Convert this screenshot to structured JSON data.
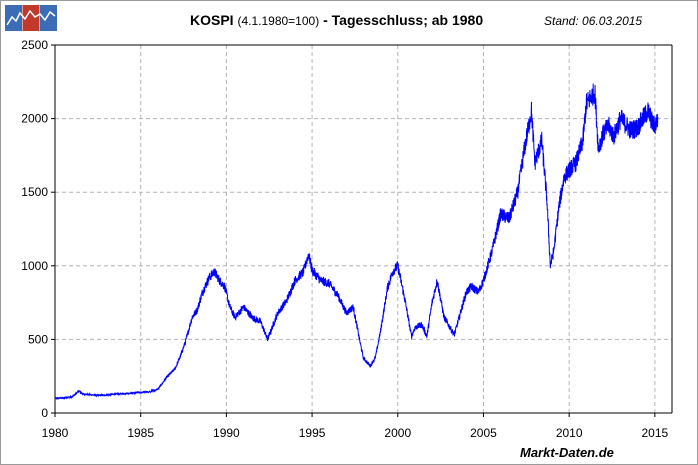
{
  "header": {
    "title_main": "KOSPI",
    "title_paren": "(4.1.1980=100)",
    "title_rest": "- Tagesschluss; ab 1980",
    "stand": "Stand: 06.03.2015"
  },
  "footer": {
    "source": "Markt-Daten.de"
  },
  "logo": {
    "icon": "chart-logo-icon",
    "colors": [
      "#3a6db5",
      "#c0392b",
      "#3a6db5"
    ]
  },
  "colors": {
    "line": "#0000ff",
    "grid": "#b4b4b4",
    "axis": "#000000"
  },
  "chart_data": {
    "type": "line",
    "title": "KOSPI (4.1.1980=100) - Tagesschluss; ab 1980",
    "xlabel": "",
    "ylabel": "",
    "xlim": [
      1980,
      2016
    ],
    "ylim": [
      0,
      2500
    ],
    "x_ticks": [
      1980,
      1985,
      1990,
      1995,
      2000,
      2005,
      2010,
      2015
    ],
    "y_ticks": [
      0,
      500,
      1000,
      1500,
      2000,
      2500
    ],
    "grid": true,
    "legend": "none",
    "series": [
      {
        "x": [
          1980.0,
          1980.5,
          1981.0,
          1981.4,
          1981.6,
          1982.0,
          1982.5,
          1983.0,
          1983.5,
          1984.0,
          1984.5,
          1985.0,
          1985.5,
          1986.0,
          1986.5,
          1987.0,
          1987.3,
          1987.6,
          1988.0,
          1988.3,
          1988.6,
          1989.0,
          1989.3,
          1989.6,
          1989.9,
          1990.2,
          1990.5,
          1990.8,
          1991.0,
          1991.5,
          1992.0,
          1992.4,
          1992.6,
          1993.0,
          1993.5,
          1994.0,
          1994.5,
          1994.8,
          1995.0,
          1995.5,
          1996.0,
          1996.5,
          1997.0,
          1997.4,
          1997.8,
          1998.0,
          1998.4,
          1998.7,
          1999.0,
          1999.4,
          1999.7,
          2000.0,
          2000.4,
          2000.8,
          2001.0,
          2001.4,
          2001.7,
          2002.0,
          2002.3,
          2002.7,
          2003.0,
          2003.3,
          2003.7,
          2004.0,
          2004.3,
          2004.7,
          2005.0,
          2005.5,
          2006.0,
          2006.5,
          2007.0,
          2007.4,
          2007.8,
          2008.0,
          2008.4,
          2008.7,
          2008.9,
          2009.1,
          2009.4,
          2009.7,
          2010.0,
          2010.4,
          2010.8,
          2011.0,
          2011.3,
          2011.5,
          2011.7,
          2012.0,
          2012.3,
          2012.6,
          2013.0,
          2013.3,
          2013.6,
          2014.0,
          2014.3,
          2014.6,
          2014.9,
          2015.0,
          2015.18
        ],
        "values": [
          100,
          102,
          110,
          150,
          130,
          125,
          120,
          122,
          128,
          132,
          136,
          140,
          145,
          160,
          240,
          300,
          380,
          480,
          650,
          700,
          820,
          920,
          960,
          900,
          860,
          720,
          650,
          690,
          720,
          650,
          620,
          500,
          560,
          680,
          760,
          900,
          960,
          1080,
          970,
          900,
          880,
          800,
          680,
          720,
          480,
          370,
          320,
          380,
          560,
          850,
          960,
          1000,
          780,
          520,
          580,
          600,
          520,
          750,
          900,
          650,
          590,
          530,
          700,
          820,
          860,
          820,
          900,
          1100,
          1350,
          1320,
          1500,
          1800,
          2050,
          1700,
          1850,
          1450,
          1000,
          1100,
          1400,
          1600,
          1650,
          1700,
          1850,
          2100,
          2150,
          2180,
          1800,
          1900,
          1950,
          1880,
          2000,
          1960,
          1920,
          1940,
          2000,
          2050,
          1960,
          1950,
          2000
        ]
      }
    ]
  }
}
